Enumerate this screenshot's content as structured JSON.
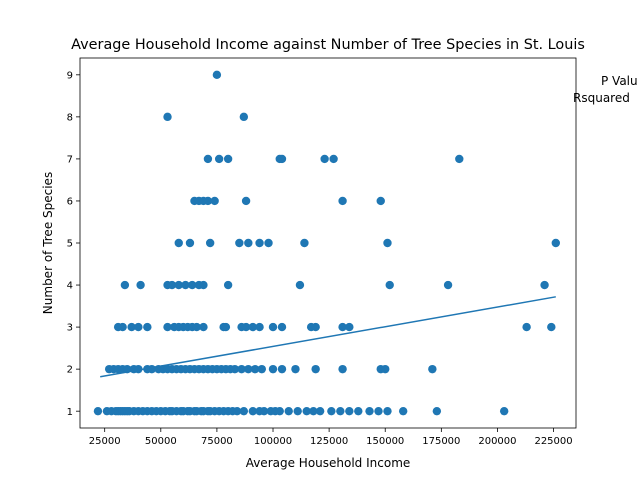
{
  "chart_data": {
    "type": "scatter",
    "title": "Average Household Income against Number of Tree Species in St. Louis",
    "xlabel": "Average Household Income",
    "ylabel": "Number of Tree Species",
    "xlim": [
      14000,
      235000
    ],
    "ylim": [
      0.6,
      9.4
    ],
    "x_ticks": [
      25000,
      50000,
      75000,
      100000,
      125000,
      150000,
      175000,
      200000,
      225000
    ],
    "x_tick_labels": [
      "25000",
      "50000",
      "75000",
      "100000",
      "125000",
      "150000",
      "175000",
      "200000",
      "225000"
    ],
    "y_ticks": [
      1,
      2,
      3,
      4,
      5,
      6,
      7,
      8,
      9
    ],
    "y_tick_labels": [
      "1",
      "2",
      "3",
      "4",
      "5",
      "6",
      "7",
      "8",
      "9"
    ],
    "grid": false,
    "point_color": "#1f77b4",
    "line_color": "#1f77b4",
    "annotations": [
      "P Valu",
      "Rsquared"
    ],
    "trendline": {
      "x": [
        23000,
        226000
      ],
      "y": [
        1.82,
        3.72
      ]
    },
    "points": [
      {
        "x": 22000,
        "y": 1
      },
      {
        "x": 26000,
        "y": 1
      },
      {
        "x": 28000,
        "y": 1
      },
      {
        "x": 30000,
        "y": 1
      },
      {
        "x": 31000,
        "y": 1
      },
      {
        "x": 32000,
        "y": 1
      },
      {
        "x": 33000,
        "y": 1
      },
      {
        "x": 34000,
        "y": 1
      },
      {
        "x": 35000,
        "y": 1
      },
      {
        "x": 36000,
        "y": 1
      },
      {
        "x": 38000,
        "y": 1
      },
      {
        "x": 40000,
        "y": 1
      },
      {
        "x": 42000,
        "y": 1
      },
      {
        "x": 44000,
        "y": 1
      },
      {
        "x": 46000,
        "y": 1
      },
      {
        "x": 48000,
        "y": 1
      },
      {
        "x": 50000,
        "y": 1
      },
      {
        "x": 52000,
        "y": 1
      },
      {
        "x": 54000,
        "y": 1
      },
      {
        "x": 55000,
        "y": 1
      },
      {
        "x": 57000,
        "y": 1
      },
      {
        "x": 59000,
        "y": 1
      },
      {
        "x": 60000,
        "y": 1
      },
      {
        "x": 62000,
        "y": 1
      },
      {
        "x": 63000,
        "y": 1
      },
      {
        "x": 65000,
        "y": 1
      },
      {
        "x": 66000,
        "y": 1
      },
      {
        "x": 68000,
        "y": 1
      },
      {
        "x": 69000,
        "y": 1
      },
      {
        "x": 71000,
        "y": 1
      },
      {
        "x": 72000,
        "y": 1
      },
      {
        "x": 74000,
        "y": 1
      },
      {
        "x": 76000,
        "y": 1
      },
      {
        "x": 78000,
        "y": 1
      },
      {
        "x": 80000,
        "y": 1
      },
      {
        "x": 82000,
        "y": 1
      },
      {
        "x": 84000,
        "y": 1
      },
      {
        "x": 87000,
        "y": 1
      },
      {
        "x": 91000,
        "y": 1
      },
      {
        "x": 94000,
        "y": 1
      },
      {
        "x": 96000,
        "y": 1
      },
      {
        "x": 99000,
        "y": 1
      },
      {
        "x": 101000,
        "y": 1
      },
      {
        "x": 103000,
        "y": 1
      },
      {
        "x": 107000,
        "y": 1
      },
      {
        "x": 111000,
        "y": 1
      },
      {
        "x": 115000,
        "y": 1
      },
      {
        "x": 118000,
        "y": 1
      },
      {
        "x": 121000,
        "y": 1
      },
      {
        "x": 126000,
        "y": 1
      },
      {
        "x": 130000,
        "y": 1
      },
      {
        "x": 134000,
        "y": 1
      },
      {
        "x": 138000,
        "y": 1
      },
      {
        "x": 143000,
        "y": 1
      },
      {
        "x": 147000,
        "y": 1
      },
      {
        "x": 151000,
        "y": 1
      },
      {
        "x": 158000,
        "y": 1
      },
      {
        "x": 173000,
        "y": 1
      },
      {
        "x": 203000,
        "y": 1
      },
      {
        "x": 27000,
        "y": 2
      },
      {
        "x": 29000,
        "y": 2
      },
      {
        "x": 31000,
        "y": 2
      },
      {
        "x": 33000,
        "y": 2
      },
      {
        "x": 35000,
        "y": 2
      },
      {
        "x": 38000,
        "y": 2
      },
      {
        "x": 40000,
        "y": 2
      },
      {
        "x": 44000,
        "y": 2
      },
      {
        "x": 46000,
        "y": 2
      },
      {
        "x": 49000,
        "y": 2
      },
      {
        "x": 51000,
        "y": 2
      },
      {
        "x": 53000,
        "y": 2
      },
      {
        "x": 55000,
        "y": 2
      },
      {
        "x": 57000,
        "y": 2
      },
      {
        "x": 59000,
        "y": 2
      },
      {
        "x": 61000,
        "y": 2
      },
      {
        "x": 63000,
        "y": 2
      },
      {
        "x": 65000,
        "y": 2
      },
      {
        "x": 67000,
        "y": 2
      },
      {
        "x": 69000,
        "y": 2
      },
      {
        "x": 71000,
        "y": 2
      },
      {
        "x": 73000,
        "y": 2
      },
      {
        "x": 75000,
        "y": 2
      },
      {
        "x": 77000,
        "y": 2
      },
      {
        "x": 79000,
        "y": 2
      },
      {
        "x": 81000,
        "y": 2
      },
      {
        "x": 83000,
        "y": 2
      },
      {
        "x": 86000,
        "y": 2
      },
      {
        "x": 89000,
        "y": 2
      },
      {
        "x": 92000,
        "y": 2
      },
      {
        "x": 95000,
        "y": 2
      },
      {
        "x": 100000,
        "y": 2
      },
      {
        "x": 104000,
        "y": 2
      },
      {
        "x": 110000,
        "y": 2
      },
      {
        "x": 119000,
        "y": 2
      },
      {
        "x": 131000,
        "y": 2
      },
      {
        "x": 148000,
        "y": 2
      },
      {
        "x": 150000,
        "y": 2
      },
      {
        "x": 171000,
        "y": 2
      },
      {
        "x": 31000,
        "y": 3
      },
      {
        "x": 33000,
        "y": 3
      },
      {
        "x": 37000,
        "y": 3
      },
      {
        "x": 40000,
        "y": 3
      },
      {
        "x": 44000,
        "y": 3
      },
      {
        "x": 53000,
        "y": 3
      },
      {
        "x": 56000,
        "y": 3
      },
      {
        "x": 58000,
        "y": 3
      },
      {
        "x": 60000,
        "y": 3
      },
      {
        "x": 62000,
        "y": 3
      },
      {
        "x": 64000,
        "y": 3
      },
      {
        "x": 66000,
        "y": 3
      },
      {
        "x": 69000,
        "y": 3
      },
      {
        "x": 78000,
        "y": 3
      },
      {
        "x": 79000,
        "y": 3
      },
      {
        "x": 86000,
        "y": 3
      },
      {
        "x": 88000,
        "y": 3
      },
      {
        "x": 91000,
        "y": 3
      },
      {
        "x": 94000,
        "y": 3
      },
      {
        "x": 100000,
        "y": 3
      },
      {
        "x": 104000,
        "y": 3
      },
      {
        "x": 117000,
        "y": 3
      },
      {
        "x": 119000,
        "y": 3
      },
      {
        "x": 131000,
        "y": 3
      },
      {
        "x": 134000,
        "y": 3
      },
      {
        "x": 213000,
        "y": 3
      },
      {
        "x": 224000,
        "y": 3
      },
      {
        "x": 34000,
        "y": 4
      },
      {
        "x": 41000,
        "y": 4
      },
      {
        "x": 53000,
        "y": 4
      },
      {
        "x": 55000,
        "y": 4
      },
      {
        "x": 58000,
        "y": 4
      },
      {
        "x": 61000,
        "y": 4
      },
      {
        "x": 64000,
        "y": 4
      },
      {
        "x": 67000,
        "y": 4
      },
      {
        "x": 69000,
        "y": 4
      },
      {
        "x": 80000,
        "y": 4
      },
      {
        "x": 112000,
        "y": 4
      },
      {
        "x": 152000,
        "y": 4
      },
      {
        "x": 178000,
        "y": 4
      },
      {
        "x": 221000,
        "y": 4
      },
      {
        "x": 58000,
        "y": 5
      },
      {
        "x": 63000,
        "y": 5
      },
      {
        "x": 72000,
        "y": 5
      },
      {
        "x": 85000,
        "y": 5
      },
      {
        "x": 89000,
        "y": 5
      },
      {
        "x": 94000,
        "y": 5
      },
      {
        "x": 98000,
        "y": 5
      },
      {
        "x": 114000,
        "y": 5
      },
      {
        "x": 151000,
        "y": 5
      },
      {
        "x": 226000,
        "y": 5
      },
      {
        "x": 65000,
        "y": 6
      },
      {
        "x": 67000,
        "y": 6
      },
      {
        "x": 69000,
        "y": 6
      },
      {
        "x": 71000,
        "y": 6
      },
      {
        "x": 74000,
        "y": 6
      },
      {
        "x": 88000,
        "y": 6
      },
      {
        "x": 131000,
        "y": 6
      },
      {
        "x": 148000,
        "y": 6
      },
      {
        "x": 71000,
        "y": 7
      },
      {
        "x": 76000,
        "y": 7
      },
      {
        "x": 80000,
        "y": 7
      },
      {
        "x": 103000,
        "y": 7
      },
      {
        "x": 104000,
        "y": 7
      },
      {
        "x": 123000,
        "y": 7
      },
      {
        "x": 127000,
        "y": 7
      },
      {
        "x": 183000,
        "y": 7
      },
      {
        "x": 53000,
        "y": 8
      },
      {
        "x": 87000,
        "y": 8
      },
      {
        "x": 75000,
        "y": 9
      }
    ]
  }
}
